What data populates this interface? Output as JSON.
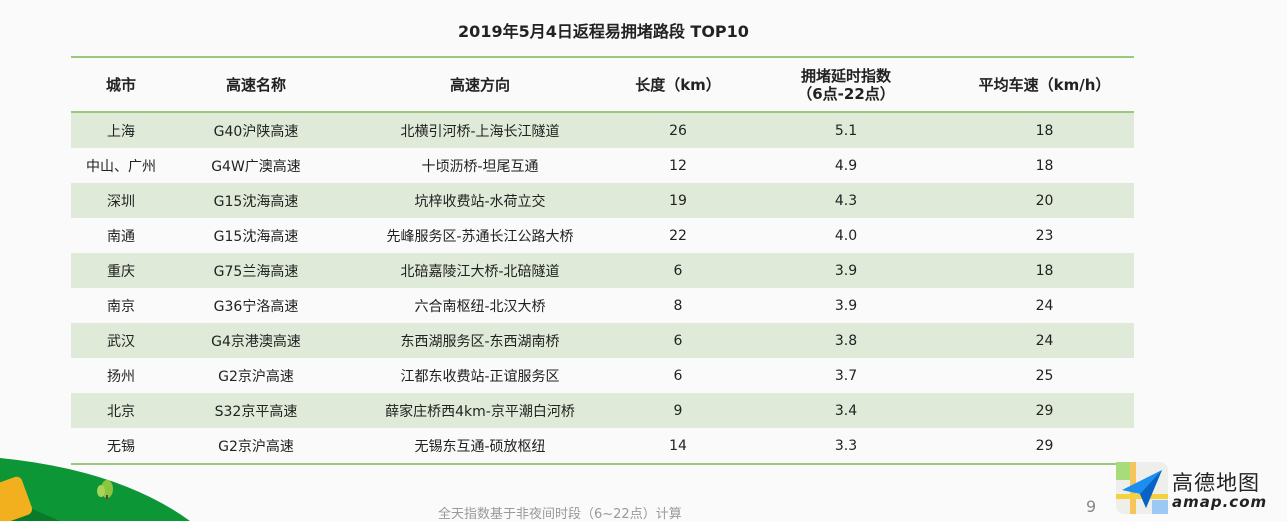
{
  "title": "2019年5月4日返程易拥堵路段 TOP10",
  "columns": [
    "城市",
    "高速名称",
    "高速方向",
    "长度（km）",
    "拥堵延时指数",
    "（6点-22点）",
    "平均车速（km/h）"
  ],
  "rows": [
    [
      "上海",
      "G40沪陕高速",
      "北横引河桥-上海长江隧道",
      "26",
      "5.1",
      "18"
    ],
    [
      "中山、广州",
      "G4W广澳高速",
      "十顷沥桥-坦尾互通",
      "12",
      "4.9",
      "18"
    ],
    [
      "深圳",
      "G15沈海高速",
      "坑梓收费站-水荷立交",
      "19",
      "4.3",
      "20"
    ],
    [
      "南通",
      "G15沈海高速",
      "先峰服务区-苏通长江公路大桥",
      "22",
      "4.0",
      "23"
    ],
    [
      "重庆",
      "G75兰海高速",
      "北碚嘉陵江大桥-北碚隧道",
      "6",
      "3.9",
      "18"
    ],
    [
      "南京",
      "G36宁洛高速",
      "六合南枢纽-北汉大桥",
      "8",
      "3.9",
      "24"
    ],
    [
      "武汉",
      "G4京港澳高速",
      "东西湖服务区-东西湖南桥",
      "6",
      "3.8",
      "24"
    ],
    [
      "扬州",
      "G2京沪高速",
      "江都东收费站-正谊服务区",
      "6",
      "3.7",
      "25"
    ],
    [
      "北京",
      "S32京平高速",
      "薛家庄桥西4km-京平潮白河桥",
      "9",
      "3.4",
      "29"
    ],
    [
      "无锡",
      "G2京沪高速",
      "无锡东互通-硕放枢纽",
      "14",
      "3.3",
      "29"
    ]
  ],
  "footnote": "全天指数基于非夜间时段（6~22点）计算",
  "page_number": "9",
  "brand": {
    "name": "高德地图",
    "domain": "amap.com"
  },
  "colors": {
    "stripe": "#dfebd8",
    "rule": "#9bc97b",
    "hill": "#0c9636"
  }
}
